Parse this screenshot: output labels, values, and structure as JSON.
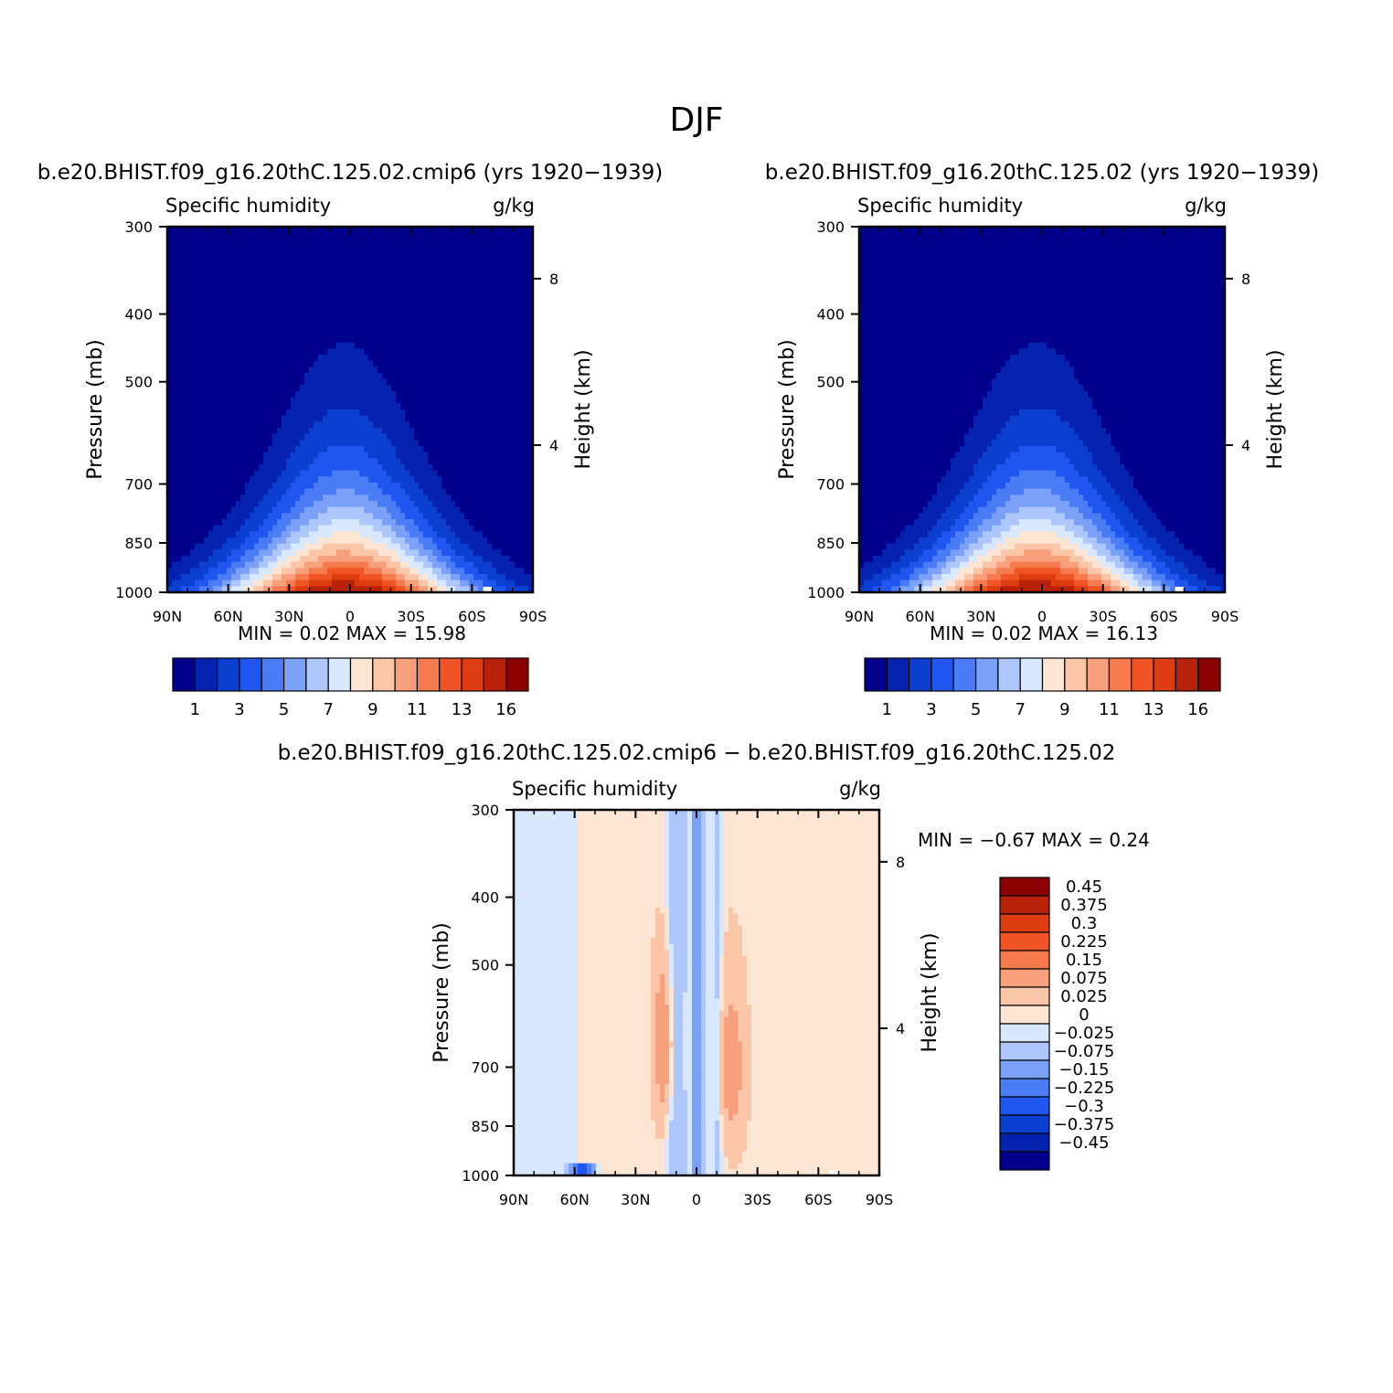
{
  "figure": {
    "title": "DJF",
    "diff_title": "b.e20.BHIST.f09_g16.20thC.125.02.cmip6 − b.e20.BHIST.f09_g16.20thC.125.02"
  },
  "chart_data": [
    {
      "type": "heatmap",
      "title": "b.e20.BHIST.f09_g16.20thC.125.02.cmip6 (yrs 1920−1939)",
      "left_label": "Specific humidity",
      "right_label": "g/kg",
      "ylabel": "Pressure (mb)",
      "ylabel_right": "Height (km)",
      "x_ticks": [
        "90N",
        "60N",
        "30N",
        "0",
        "30S",
        "60S",
        "90S"
      ],
      "y_ticks": [
        "300",
        "400",
        "500",
        "700",
        "850",
        "1000"
      ],
      "y_ticks_right": [
        "8",
        "4"
      ],
      "min_label": "MIN =",
      "min": "0.02",
      "max_label": "MAX =",
      "max": "15.98",
      "colorbar": {
        "levels": [
          "1",
          "3",
          "5",
          "7",
          "9",
          "11",
          "13",
          "16"
        ],
        "colors": [
          "#00008b",
          "#0523b0",
          "#0a3fd0",
          "#1f56f0",
          "#4a7df5",
          "#7aa0f7",
          "#adc6fb",
          "#d8e8ff",
          "#fde5d3",
          "#fbc6a8",
          "#f8a07c",
          "#f57b4f",
          "#f15424",
          "#dd3b10",
          "#b8220a",
          "#8b0000"
        ]
      },
      "field": "moist"
    },
    {
      "type": "heatmap",
      "title": "b.e20.BHIST.f09_g16.20thC.125.02 (yrs 1920−1939)",
      "left_label": "Specific humidity",
      "right_label": "g/kg",
      "ylabel": "Pressure (mb)",
      "ylabel_right": "Height (km)",
      "x_ticks": [
        "90N",
        "60N",
        "30N",
        "0",
        "30S",
        "60S",
        "90S"
      ],
      "y_ticks": [
        "300",
        "400",
        "500",
        "700",
        "850",
        "1000"
      ],
      "y_ticks_right": [
        "8",
        "4"
      ],
      "min_label": "MIN =",
      "min": "0.02",
      "max_label": "MAX =",
      "max": "16.13",
      "colorbar": {
        "levels": [
          "1",
          "3",
          "5",
          "7",
          "9",
          "11",
          "13",
          "16"
        ],
        "colors": [
          "#00008b",
          "#0523b0",
          "#0a3fd0",
          "#1f56f0",
          "#4a7df5",
          "#7aa0f7",
          "#adc6fb",
          "#d8e8ff",
          "#fde5d3",
          "#fbc6a8",
          "#f8a07c",
          "#f57b4f",
          "#f15424",
          "#dd3b10",
          "#b8220a",
          "#8b0000"
        ]
      },
      "field": "moist"
    },
    {
      "type": "heatmap",
      "title": "",
      "left_label": "Specific humidity",
      "right_label": "g/kg",
      "ylabel": "Pressure (mb)",
      "ylabel_right": "Height (km)",
      "x_ticks": [
        "90N",
        "60N",
        "30N",
        "0",
        "30S",
        "60S",
        "90S"
      ],
      "y_ticks": [
        "300",
        "400",
        "500",
        "700",
        "850",
        "1000"
      ],
      "y_ticks_right": [
        "8",
        "4"
      ],
      "min_label": "MIN =",
      "min": "−0.67",
      "max_label": "MAX =",
      "max": "0.24",
      "colorbar": {
        "levels": [
          "0.45",
          "0.375",
          "0.3",
          "0.225",
          "0.15",
          "0.075",
          "0.025",
          "0",
          "−0.025",
          "−0.075",
          "−0.15",
          "−0.225",
          "−0.3",
          "−0.375",
          "−0.45"
        ],
        "colors": [
          "#8b0000",
          "#b8220a",
          "#dd3b10",
          "#f15424",
          "#f57b4f",
          "#f8a07c",
          "#fbc6a8",
          "#fde5d3",
          "#d8e8ff",
          "#adc6fb",
          "#7aa0f7",
          "#4a7df5",
          "#1f56f0",
          "#0a3fd0",
          "#0523b0",
          "#00008b"
        ]
      },
      "field": "diff"
    }
  ]
}
